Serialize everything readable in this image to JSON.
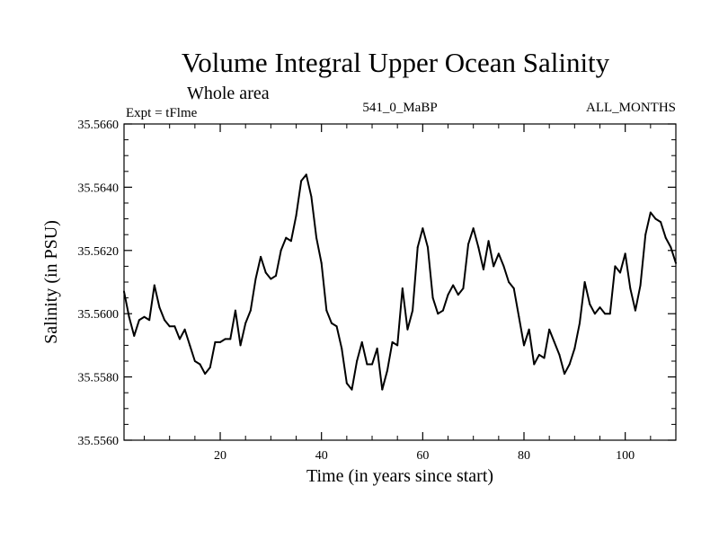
{
  "chart_data": {
    "type": "line",
    "title": "Volume Integral Upper Ocean Salinity",
    "subtitle": "Whole area",
    "left_label": "Expt = tFlme",
    "center_label": "541_0_MaBP",
    "right_label": "ALL_MONTHS",
    "xlabel": "Time (in years since start)",
    "ylabel": "Salinity (in PSU)",
    "xlim": [
      1,
      110
    ],
    "ylim": [
      35.556,
      35.566
    ],
    "xticks": [
      20,
      40,
      60,
      80,
      100
    ],
    "xtick_labels": [
      "20",
      "40",
      "60",
      "80",
      "100"
    ],
    "yticks": [
      35.556,
      35.558,
      35.56,
      35.562,
      35.564,
      35.566
    ],
    "ytick_labels": [
      "35.5560",
      "35.5580",
      "35.5600",
      "35.5620",
      "35.5640",
      "35.5660"
    ],
    "grid": false,
    "series": [
      {
        "name": "salinity",
        "x": [
          1,
          2,
          3,
          4,
          5,
          6,
          7,
          8,
          9,
          10,
          11,
          12,
          13,
          14,
          15,
          16,
          17,
          18,
          19,
          20,
          21,
          22,
          23,
          24,
          25,
          26,
          27,
          28,
          29,
          30,
          31,
          32,
          33,
          34,
          35,
          36,
          37,
          38,
          39,
          40,
          41,
          42,
          43,
          44,
          45,
          46,
          47,
          48,
          49,
          50,
          51,
          52,
          53,
          54,
          55,
          56,
          57,
          58,
          59,
          60,
          61,
          62,
          63,
          64,
          65,
          66,
          67,
          68,
          69,
          70,
          71,
          72,
          73,
          74,
          75,
          76,
          77,
          78,
          79,
          80,
          81,
          82,
          83,
          84,
          85,
          86,
          87,
          88,
          89,
          90,
          91,
          92,
          93,
          94,
          95,
          96,
          97,
          98,
          99,
          100,
          101,
          102,
          103,
          104,
          105,
          106,
          107,
          108,
          109,
          110
        ],
        "values": [
          35.5607,
          35.5599,
          35.5593,
          35.5598,
          35.5599,
          35.5598,
          35.5609,
          35.5602,
          35.5598,
          35.5596,
          35.5596,
          35.5592,
          35.5595,
          35.559,
          35.5585,
          35.5584,
          35.5581,
          35.5583,
          35.5591,
          35.5591,
          35.5592,
          35.5592,
          35.5601,
          35.559,
          35.5597,
          35.5601,
          35.5611,
          35.5618,
          35.5613,
          35.5611,
          35.5612,
          35.562,
          35.5624,
          35.5623,
          35.5631,
          35.5642,
          35.5644,
          35.5637,
          35.5624,
          35.5616,
          35.5601,
          35.5597,
          35.5596,
          35.5589,
          35.5578,
          35.5576,
          35.5585,
          35.5591,
          35.5584,
          35.5584,
          35.5589,
          35.5576,
          35.5582,
          35.5591,
          35.559,
          35.5608,
          35.5595,
          35.5601,
          35.5621,
          35.5627,
          35.5621,
          35.5605,
          35.56,
          35.5601,
          35.5606,
          35.5609,
          35.5606,
          35.5608,
          35.5622,
          35.5627,
          35.5621,
          35.5614,
          35.5623,
          35.5615,
          35.5619,
          35.5615,
          35.561,
          35.5608,
          35.5599,
          35.559,
          35.5595,
          35.5584,
          35.5587,
          35.5586,
          35.5595,
          35.5591,
          35.5587,
          35.5581,
          35.5584,
          35.5589,
          35.5597,
          35.561,
          35.5603,
          35.56,
          35.5602,
          35.56,
          35.56,
          35.5615,
          35.5613,
          35.5619,
          35.5608,
          35.5601,
          35.5609,
          35.5625,
          35.5632,
          35.563,
          35.5629,
          35.5624,
          35.5621,
          35.5616
        ]
      }
    ]
  }
}
